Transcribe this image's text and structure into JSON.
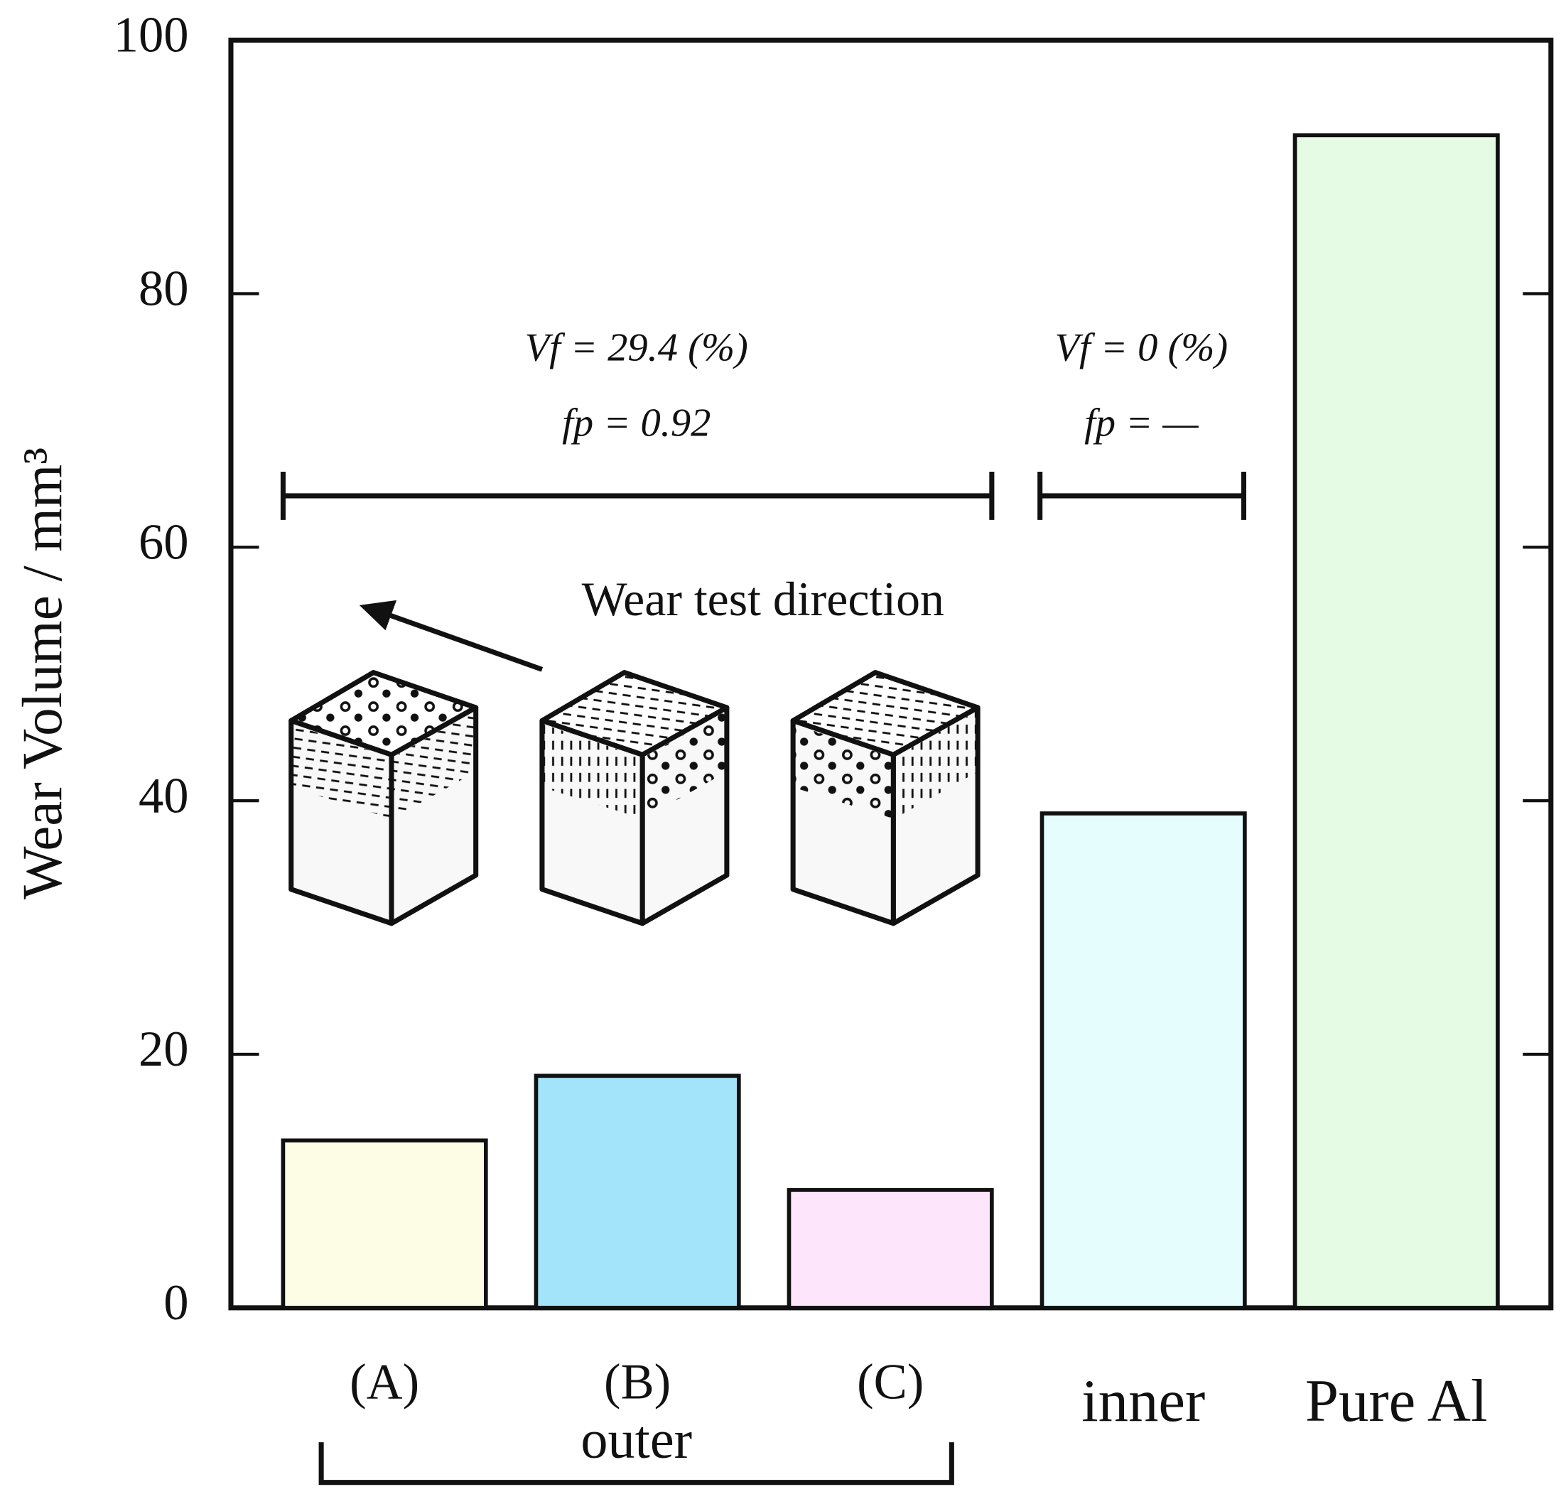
{
  "chart_data": {
    "type": "bar",
    "ylabel": "Wear Volume / mm³",
    "categories": [
      "(A)",
      "(B)",
      "(C)",
      "inner",
      "Pure Al"
    ],
    "values": [
      13.2,
      18.3,
      9.3,
      39.0,
      92.5
    ],
    "colors": [
      "#fdfde6",
      "#a3e4fa",
      "#fde6fb",
      "#e5fdfd",
      "#e5fbe3"
    ],
    "ylim": [
      0,
      100
    ],
    "yticks": [
      0,
      20,
      40,
      60,
      80,
      100
    ],
    "group_label": "outer",
    "annotations": [
      "Vf = 29.4 (%)",
      "fp = 0.92",
      "Vf = 0 (%)",
      "fp = —",
      "Wear test direction"
    ]
  }
}
